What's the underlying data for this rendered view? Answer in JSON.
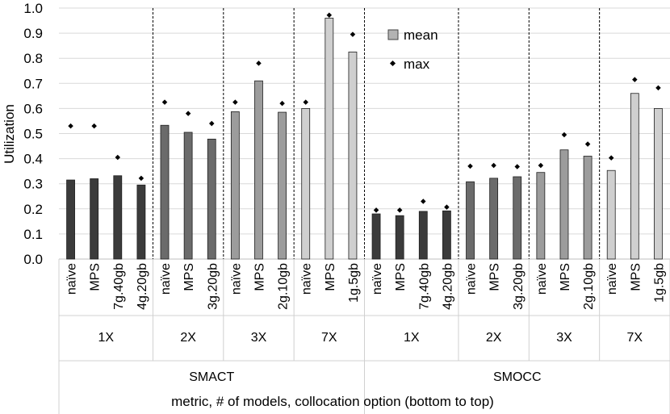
{
  "chart_data": {
    "type": "bar",
    "ylabel": "Utilization",
    "xlabel": "metric, # of models, collocation option (bottom to top)",
    "ylim": [
      0,
      1.0
    ],
    "yticks": [
      "0.0",
      "0.1",
      "0.2",
      "0.3",
      "0.4",
      "0.5",
      "0.6",
      "0.7",
      "0.8",
      "0.9",
      "1.0"
    ],
    "grid": true,
    "legend": {
      "position": "top-center",
      "items": [
        {
          "name": "mean",
          "marker": "bar"
        },
        {
          "name": "max",
          "marker": "diamond"
        }
      ]
    },
    "shade_colors": {
      "1X": "#3b3b3b",
      "2X": "#6b6b6b",
      "3X": "#9c9c9c",
      "7X": "#cfcfcf"
    },
    "metrics": [
      {
        "name": "SMACT",
        "groups": [
          {
            "label": "1X",
            "bars": [
              {
                "category": "naïve",
                "mean": 0.315,
                "max": 0.53
              },
              {
                "category": "MPS",
                "mean": 0.32,
                "max": 0.53
              },
              {
                "category": "7g.40gb",
                "mean": 0.332,
                "max": 0.405
              },
              {
                "category": "4g.20gb",
                "mean": 0.295,
                "max": 0.322
              }
            ]
          },
          {
            "label": "2X",
            "bars": [
              {
                "category": "naïve",
                "mean": 0.533,
                "max": 0.625
              },
              {
                "category": "MPS",
                "mean": 0.505,
                "max": 0.58
              },
              {
                "category": "3g.20gb",
                "mean": 0.478,
                "max": 0.54
              }
            ]
          },
          {
            "label": "3X",
            "bars": [
              {
                "category": "naïve",
                "mean": 0.587,
                "max": 0.625
              },
              {
                "category": "MPS",
                "mean": 0.71,
                "max": 0.78
              },
              {
                "category": "2g.10gb",
                "mean": 0.585,
                "max": 0.62
              }
            ]
          },
          {
            "label": "7X",
            "bars": [
              {
                "category": "naïve",
                "mean": 0.6,
                "max": 0.625
              },
              {
                "category": "MPS",
                "mean": 0.96,
                "max": 0.972
              },
              {
                "category": "1g.5gb",
                "mean": 0.825,
                "max": 0.895
              }
            ]
          }
        ]
      },
      {
        "name": "SMOCC",
        "groups": [
          {
            "label": "1X",
            "bars": [
              {
                "category": "naïve",
                "mean": 0.18,
                "max": 0.195
              },
              {
                "category": "MPS",
                "mean": 0.173,
                "max": 0.195
              },
              {
                "category": "7g.40gb",
                "mean": 0.19,
                "max": 0.23
              },
              {
                "category": "4g.20gb",
                "mean": 0.192,
                "max": 0.207
              }
            ]
          },
          {
            "label": "2X",
            "bars": [
              {
                "category": "naïve",
                "mean": 0.308,
                "max": 0.37
              },
              {
                "category": "MPS",
                "mean": 0.322,
                "max": 0.373
              },
              {
                "category": "3g.20gb",
                "mean": 0.328,
                "max": 0.368
              }
            ]
          },
          {
            "label": "3X",
            "bars": [
              {
                "category": "naïve",
                "mean": 0.345,
                "max": 0.373
              },
              {
                "category": "MPS",
                "mean": 0.435,
                "max": 0.495
              },
              {
                "category": "2g.10gb",
                "mean": 0.41,
                "max": 0.458
              }
            ]
          },
          {
            "label": "7X",
            "bars": [
              {
                "category": "naïve",
                "mean": 0.353,
                "max": 0.403
              },
              {
                "category": "MPS",
                "mean": 0.66,
                "max": 0.715
              },
              {
                "category": "1g.5gb",
                "mean": 0.6,
                "max": 0.682
              }
            ]
          }
        ]
      }
    ]
  }
}
